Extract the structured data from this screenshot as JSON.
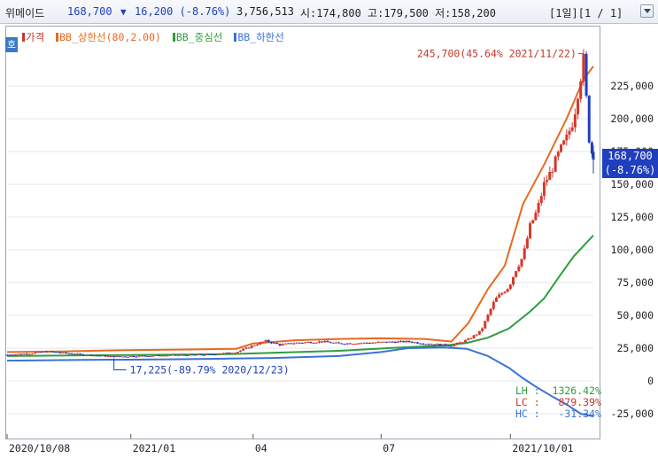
{
  "header": {
    "name": "위메이드",
    "price": "168,700",
    "change": "16,200 (-8.76%)",
    "volume": "3,756,513",
    "ohl": "시:174,800 고:179,500 저:158,200",
    "period": "[1일][1 / 1]"
  },
  "mode_badge": "호",
  "legend": [
    {
      "label": "가격",
      "color": "#c0392b"
    },
    {
      "label": "BB_상한선(80,2.00)",
      "color": "#e8691f"
    },
    {
      "label": "BB_중심선",
      "color": "#2e9e3e"
    },
    {
      "label": "BB_하한선",
      "color": "#3a72d6"
    }
  ],
  "current_price_tag": {
    "price": "168,700",
    "change": "(-8.76%)"
  },
  "stats": [
    {
      "text": "LH :  1326.42%",
      "color": "#2e9e3e"
    },
    {
      "text": "LC :   879.39%",
      "color": "#c0392b"
    },
    {
      "text": "HC :   -31.34%",
      "color": "#3a72d6"
    }
  ],
  "colors": {
    "up": "#d4382c",
    "down": "#1f3fbf",
    "upper": "#e8691f",
    "mid": "#2e9e3e",
    "lower": "#3a72d6",
    "axis_text": "#222222"
  },
  "chart_data": {
    "type": "line",
    "title": "",
    "xlabel": "",
    "ylabel": "",
    "ylim": [
      -30000,
      250000
    ],
    "xlim": [
      "2020-10-08",
      "2021-11-29"
    ],
    "y_ticks": [
      -25000,
      0,
      25000,
      50000,
      75000,
      100000,
      125000,
      150000,
      175000,
      200000,
      225000
    ],
    "y_tick_labels": [
      "-25,000",
      "0",
      "25,000",
      "50,000",
      "75,000",
      "100,000",
      "125,000",
      "150,000",
      "175,000",
      "200,000",
      "225,000"
    ],
    "x_tick_labels": [
      {
        "date": "2020-10-08",
        "label": "2020/10/08"
      },
      {
        "date": "2021-01-04",
        "label": "2021/01"
      },
      {
        "date": "2021-04-01",
        "label": "04"
      },
      {
        "date": "2021-07-01",
        "label": "07"
      },
      {
        "date": "2021-10-01",
        "label": "2021/10/01"
      }
    ],
    "annotations": [
      {
        "text": "245,700(45.64% 2021/11/22)",
        "date": "2021-11-22",
        "value": 245700,
        "kind": "high"
      },
      {
        "text": "17,225(-89.79% 2020/12/23)",
        "date": "2020-12-23",
        "value": 17225,
        "kind": "low"
      }
    ],
    "series": [
      {
        "name": "BB_상한선(80,2.00)",
        "color": "#e8691f",
        "points": [
          [
            "2020-10-08",
            22000
          ],
          [
            "2020-11-15",
            22500
          ],
          [
            "2021-01-01",
            23500
          ],
          [
            "2021-02-15",
            24000
          ],
          [
            "2021-03-20",
            24500
          ],
          [
            "2021-04-01",
            28500
          ],
          [
            "2021-05-01",
            31000
          ],
          [
            "2021-06-01",
            32000
          ],
          [
            "2021-07-01",
            32500
          ],
          [
            "2021-08-01",
            32000
          ],
          [
            "2021-08-20",
            30000
          ],
          [
            "2021-09-01",
            44000
          ],
          [
            "2021-09-15",
            70000
          ],
          [
            "2021-09-27",
            88000
          ],
          [
            "2021-10-10",
            135000
          ],
          [
            "2021-10-25",
            165000
          ],
          [
            "2021-11-10",
            200000
          ],
          [
            "2021-11-22",
            230000
          ],
          [
            "2021-11-29",
            240000
          ]
        ]
      },
      {
        "name": "BB_중심선",
        "color": "#2e9e3e",
        "points": [
          [
            "2020-10-08",
            19000
          ],
          [
            "2020-12-01",
            19500
          ],
          [
            "2021-02-01",
            20000
          ],
          [
            "2021-03-15",
            20500
          ],
          [
            "2021-04-15",
            21500
          ],
          [
            "2021-06-01",
            23000
          ],
          [
            "2021-07-15",
            25500
          ],
          [
            "2021-08-15",
            27000
          ],
          [
            "2021-08-31",
            29000
          ],
          [
            "2021-09-15",
            33000
          ],
          [
            "2021-09-30",
            40000
          ],
          [
            "2021-10-15",
            53000
          ],
          [
            "2021-10-25",
            63000
          ],
          [
            "2021-11-05",
            80000
          ],
          [
            "2021-11-15",
            95000
          ],
          [
            "2021-11-29",
            111000
          ]
        ]
      },
      {
        "name": "BB_하한선",
        "color": "#3a72d6",
        "points": [
          [
            "2020-10-08",
            15500
          ],
          [
            "2020-12-01",
            16000
          ],
          [
            "2021-02-01",
            16500
          ],
          [
            "2021-03-15",
            17000
          ],
          [
            "2021-04-15",
            17500
          ],
          [
            "2021-06-01",
            19000
          ],
          [
            "2021-07-01",
            22000
          ],
          [
            "2021-07-20",
            25000
          ],
          [
            "2021-08-15",
            25500
          ],
          [
            "2021-08-31",
            24500
          ],
          [
            "2021-09-15",
            19000
          ],
          [
            "2021-09-30",
            10000
          ],
          [
            "2021-10-10",
            2000
          ],
          [
            "2021-10-20",
            -5000
          ],
          [
            "2021-10-31",
            -12000
          ],
          [
            "2021-11-10",
            -18000
          ],
          [
            "2021-11-20",
            -25000
          ],
          [
            "2021-11-29",
            -27000
          ]
        ]
      },
      {
        "name": "가격",
        "color": "#d4382c",
        "type": "candlestick",
        "points": [
          [
            "2020-10-08",
            20000
          ],
          [
            "2020-10-25",
            21000
          ],
          [
            "2020-11-05",
            22500
          ],
          [
            "2020-11-15",
            21500
          ],
          [
            "2020-12-01",
            20000
          ],
          [
            "2020-12-23",
            18500
          ],
          [
            "2021-01-10",
            19000
          ],
          [
            "2021-02-01",
            19500
          ],
          [
            "2021-03-01",
            20000
          ],
          [
            "2021-03-20",
            22000
          ],
          [
            "2021-04-01",
            27000
          ],
          [
            "2021-04-10",
            30500
          ],
          [
            "2021-04-20",
            27500
          ],
          [
            "2021-05-01",
            29000
          ],
          [
            "2021-05-20",
            30000
          ],
          [
            "2021-06-01",
            28500
          ],
          [
            "2021-06-20",
            29000
          ],
          [
            "2021-07-01",
            29500
          ],
          [
            "2021-07-20",
            30000
          ],
          [
            "2021-08-01",
            28500
          ],
          [
            "2021-08-20",
            27000
          ],
          [
            "2021-09-01",
            31500
          ],
          [
            "2021-09-10",
            38000
          ],
          [
            "2021-09-20",
            62000
          ],
          [
            "2021-09-30",
            72000
          ],
          [
            "2021-10-05",
            85000
          ],
          [
            "2021-10-10",
            95000
          ],
          [
            "2021-10-15",
            118000
          ],
          [
            "2021-10-20",
            130000
          ],
          [
            "2021-10-25",
            150000
          ],
          [
            "2021-10-30",
            160000
          ],
          [
            "2021-11-05",
            175000
          ],
          [
            "2021-11-10",
            185000
          ],
          [
            "2021-11-15",
            200000
          ],
          [
            "2021-11-18",
            220000
          ],
          [
            "2021-11-22",
            245000
          ],
          [
            "2021-11-24",
            215000
          ],
          [
            "2021-11-26",
            185000
          ],
          [
            "2021-11-29",
            168700
          ]
        ]
      }
    ]
  }
}
